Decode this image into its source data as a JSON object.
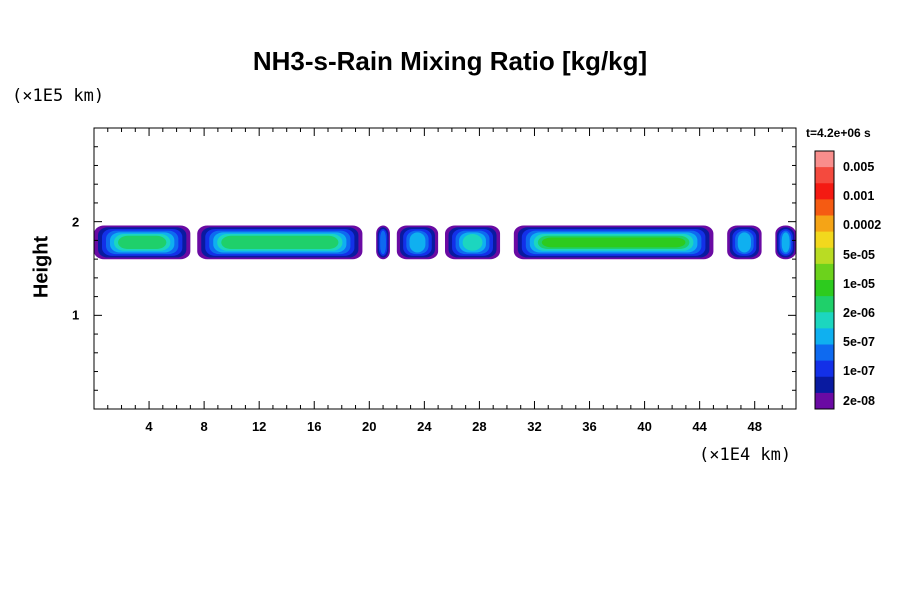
{
  "chart_data": {
    "type": "heatmap",
    "title": "NH3-s-Rain Mixing Ratio [kg/kg]",
    "ylabel": "Height",
    "x_unit": "(×1E4 km)",
    "y_unit": "(×1E5 km)",
    "time": "t=4.2e+06 s",
    "xlim": [
      0,
      51
    ],
    "ylim": [
      0,
      3
    ],
    "x_ticks": [
      "4",
      "8",
      "12",
      "16",
      "20",
      "24",
      "28",
      "32",
      "36",
      "40",
      "44",
      "48"
    ],
    "y_ticks": [
      "1",
      "2"
    ],
    "colorbar": {
      "levels": [
        "0.005",
        "0.001",
        "0.0002",
        "5e-05",
        "1e-05",
        "2e-06",
        "5e-07",
        "1e-07",
        "2e-08"
      ],
      "colors": [
        "#f98e8c",
        "#f44a3e",
        "#f41a12",
        "#f55b12",
        "#f5a416",
        "#f2d81d",
        "#b9dc23",
        "#6cd21c",
        "#2dcb1e",
        "#1fd06a",
        "#1cd6bf",
        "#0fb0f0",
        "#0e6af0",
        "#1330e8",
        "#091aa0",
        "#6a0aa3"
      ]
    },
    "features": [
      {
        "x": [
          0,
          7
        ],
        "level": 5
      },
      {
        "x": [
          7.5,
          19.5
        ],
        "level": 5
      },
      {
        "x": [
          20.5,
          21.5
        ],
        "level": 2
      },
      {
        "x": [
          22,
          25
        ],
        "level": 3
      },
      {
        "x": [
          25.5,
          29.5
        ],
        "level": 4
      },
      {
        "x": [
          30.5,
          45
        ],
        "level": 6
      },
      {
        "x": [
          46,
          48.5
        ],
        "level": 3
      },
      {
        "x": [
          49.5,
          51
        ],
        "level": 3
      }
    ]
  }
}
